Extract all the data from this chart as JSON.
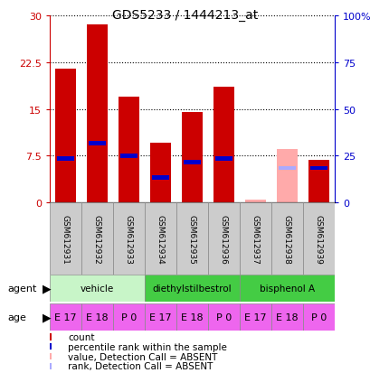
{
  "title": "GDS5233 / 1444213_at",
  "samples": [
    "GSM612931",
    "GSM612932",
    "GSM612933",
    "GSM612934",
    "GSM612935",
    "GSM612936",
    "GSM612937",
    "GSM612938",
    "GSM612939"
  ],
  "count_values": [
    21.5,
    28.5,
    17.0,
    9.5,
    14.5,
    18.5,
    0,
    0,
    6.8
  ],
  "rank_values": [
    7.0,
    9.5,
    7.5,
    4.0,
    6.5,
    7.0,
    0,
    0,
    5.5
  ],
  "absent_count": [
    0,
    0,
    0,
    0,
    0,
    0,
    0.5,
    8.5,
    0
  ],
  "absent_rank": [
    0,
    0,
    0,
    0,
    0,
    0,
    0,
    5.5,
    0
  ],
  "ylim_left": [
    0,
    30
  ],
  "ylim_right": [
    0,
    100
  ],
  "yticks_left": [
    0,
    7.5,
    15,
    22.5,
    30
  ],
  "yticks_right": [
    0,
    25,
    50,
    75,
    100
  ],
  "ytick_labels_left": [
    "0",
    "7.5",
    "15",
    "22.5",
    "30"
  ],
  "ytick_labels_right": [
    "0",
    "25",
    "50",
    "75",
    "100%"
  ],
  "agents": [
    {
      "label": "vehicle",
      "start": 0,
      "end": 3,
      "color": "#c8f5c8"
    },
    {
      "label": "diethylstilbestrol",
      "start": 3,
      "end": 6,
      "color": "#44cc44"
    },
    {
      "label": "bisphenol A",
      "start": 6,
      "end": 9,
      "color": "#44cc44"
    }
  ],
  "ages": [
    "E 17",
    "E 18",
    "P 0",
    "E 17",
    "E 18",
    "P 0",
    "E 17",
    "E 18",
    "P 0"
  ],
  "age_color": "#ee66ee",
  "bar_color_present": "#cc0000",
  "bar_color_absent": "#ffaaaa",
  "rank_color_present": "#0000cc",
  "rank_color_absent": "#aaaaff",
  "bar_width": 0.65,
  "left_tick_color": "#cc0000",
  "right_tick_color": "#0000cc",
  "grid_color": "#000000",
  "sample_bg": "#cccccc",
  "legend_items": [
    {
      "color": "#cc0000",
      "label": "count"
    },
    {
      "color": "#0000cc",
      "label": "percentile rank within the sample"
    },
    {
      "color": "#ffaaaa",
      "label": "value, Detection Call = ABSENT"
    },
    {
      "color": "#aaaaff",
      "label": "rank, Detection Call = ABSENT"
    }
  ]
}
